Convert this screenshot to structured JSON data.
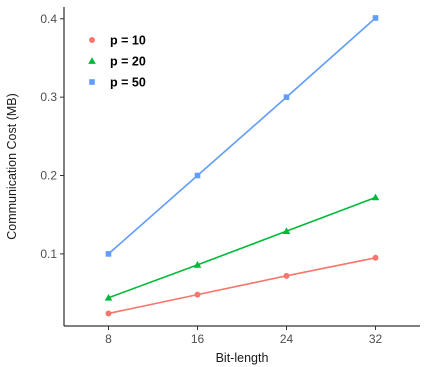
{
  "chart_data": {
    "type": "line",
    "title": "",
    "xlabel": "Bit-length",
    "ylabel": "Communication Cost (MB)",
    "x": [
      8,
      16,
      24,
      32
    ],
    "x_ticks": [
      "8",
      "16",
      "24",
      "32"
    ],
    "y_ticks": [
      "0.1",
      "0.2",
      "0.3",
      "0.4"
    ],
    "xlim": [
      4,
      36
    ],
    "ylim": [
      0.008,
      0.415
    ],
    "grid": false,
    "legend_position": "top-left",
    "series": [
      {
        "name": "p = 10",
        "values": [
          0.024,
          0.048,
          0.072,
          0.095
        ],
        "color": "#f8766d",
        "marker": "circle"
      },
      {
        "name": "p = 20",
        "values": [
          0.044,
          0.086,
          0.129,
          0.172
        ],
        "color": "#00ba38",
        "marker": "triangle"
      },
      {
        "name": "p = 50",
        "values": [
          0.1,
          0.2,
          0.3,
          0.401
        ],
        "color": "#619cff",
        "marker": "square"
      }
    ]
  }
}
